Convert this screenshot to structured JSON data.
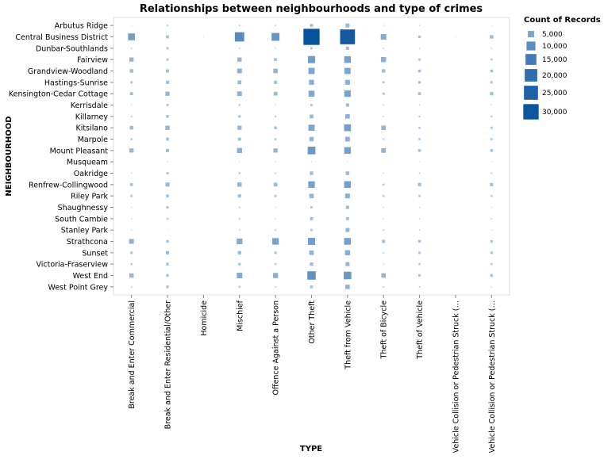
{
  "chart_data": {
    "type": "scatter",
    "mark": "square",
    "title": "Relationships between neighbourhoods and type of crimes",
    "xlabel": "TYPE",
    "ylabel": "NEIGHBOURHOOD",
    "x_categories": [
      "Break and Enter Commercial",
      "Break and Enter Residential/Other",
      "Homicide",
      "Mischief",
      "Offence Against a Person",
      "Other Theft",
      "Theft from Vehicle",
      "Theft of Bicycle",
      "Theft of Vehicle",
      "Vehicle Collision or Pedestrian Struck (…",
      "Vehicle Collision or Pedestrian Struck (…"
    ],
    "y_categories": [
      "Arbutus Ridge",
      "Central Business District",
      "Dunbar-Southlands",
      "Fairview",
      "Grandview-Woodland",
      "Hastings-Sunrise",
      "Kensington-Cedar Cottage",
      "Kerrisdale",
      "Killarney",
      "Kitsilano",
      "Marpole",
      "Mount Pleasant",
      "Musqueam",
      "Oakridge",
      "Renfrew-Collingwood",
      "Riley Park",
      "Shaughnessy",
      "South Cambie",
      "Stanley Park",
      "Strathcona",
      "Sunset",
      "Victoria-Fraserview",
      "West End",
      "West Point Grey"
    ],
    "size_legend_title": "Count of Records",
    "size_legend": [
      {
        "label": "5,000",
        "value": 5000
      },
      {
        "label": "10,000",
        "value": 10000
      },
      {
        "label": "15,000",
        "value": 15000
      },
      {
        "label": "20,000",
        "value": 20000
      },
      {
        "label": "25,000",
        "value": 25000
      },
      {
        "label": "30,000",
        "value": 30000
      }
    ],
    "value_max": 32000,
    "grid": false,
    "legend_position": "right",
    "colors": {
      "low": "#c6dbef",
      "high": "#08519c"
    },
    "values": [
      [
        60,
        300,
        0,
        250,
        200,
        1200,
        2000,
        150,
        150,
        0,
        100
      ],
      [
        6000,
        1100,
        10,
        11000,
        7800,
        33000,
        28000,
        4000,
        900,
        10,
        1500
      ],
      [
        250,
        700,
        0,
        250,
        150,
        700,
        1300,
        200,
        150,
        0,
        150
      ],
      [
        2300,
        700,
        0,
        2300,
        1100,
        6500,
        5600,
        3300,
        700,
        0,
        550
      ],
      [
        1600,
        1300,
        0,
        2800,
        2500,
        4900,
        4800,
        1500,
        1000,
        0,
        1000
      ],
      [
        700,
        1300,
        0,
        1800,
        1300,
        3200,
        3000,
        600,
        900,
        0,
        750
      ],
      [
        1200,
        2300,
        0,
        2800,
        1800,
        4500,
        5300,
        700,
        1100,
        0,
        1400
      ],
      [
        100,
        700,
        0,
        400,
        100,
        700,
        1400,
        200,
        150,
        0,
        150
      ],
      [
        300,
        1000,
        0,
        850,
        400,
        1800,
        2600,
        200,
        400,
        0,
        400
      ],
      [
        1600,
        2400,
        0,
        2200,
        1000,
        4800,
        6000,
        2500,
        600,
        0,
        700
      ],
      [
        500,
        1100,
        0,
        1200,
        500,
        2400,
        2800,
        350,
        550,
        0,
        550
      ],
      [
        2300,
        1400,
        0,
        3300,
        2300,
        7500,
        5700,
        2700,
        1000,
        0,
        1000
      ],
      [
        0,
        10,
        0,
        40,
        10,
        60,
        60,
        0,
        10,
        0,
        10
      ],
      [
        150,
        700,
        0,
        450,
        250,
        1600,
        1700,
        150,
        250,
        0,
        300
      ],
      [
        1100,
        2100,
        0,
        2400,
        1800,
        5600,
        5800,
        500,
        1400,
        0,
        1300
      ],
      [
        600,
        1100,
        0,
        1400,
        700,
        2500,
        2900,
        500,
        600,
        0,
        500
      ],
      [
        100,
        800,
        0,
        300,
        100,
        700,
        1400,
        150,
        150,
        0,
        100
      ],
      [
        150,
        500,
        0,
        350,
        150,
        1200,
        1200,
        150,
        150,
        0,
        200
      ],
      [
        100,
        20,
        0,
        200,
        300,
        700,
        2100,
        300,
        200,
        0,
        30
      ],
      [
        2900,
        1000,
        0,
        4200,
        5400,
        6400,
        5800,
        1300,
        900,
        0,
        800
      ],
      [
        800,
        1400,
        0,
        1500,
        800,
        2600,
        3400,
        300,
        800,
        0,
        800
      ],
      [
        500,
        1000,
        0,
        800,
        500,
        1500,
        2100,
        150,
        500,
        0,
        500
      ],
      [
        2400,
        900,
        0,
        3900,
        3300,
        9000,
        7300,
        2500,
        800,
        0,
        1000
      ],
      [
        250,
        900,
        0,
        500,
        200,
        1100,
        2500,
        300,
        250,
        0,
        150
      ]
    ]
  }
}
